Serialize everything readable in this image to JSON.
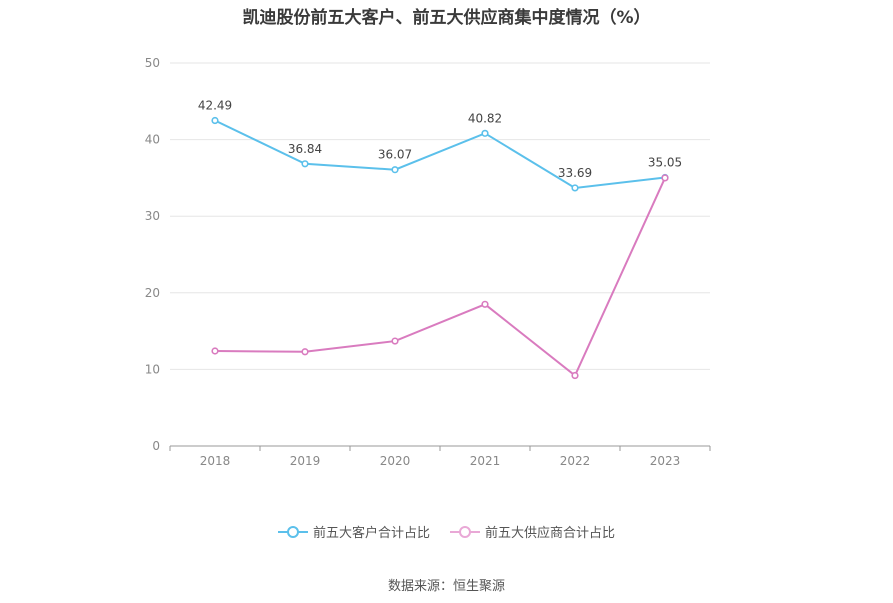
{
  "title": "凯迪股份前五大客户、前五大供应商集中度情况（%）",
  "source": "数据来源：恒生聚源",
  "colors": {
    "customers": "#5bc0eb",
    "suppliers": "#d97bbf",
    "grid": "#e6e6e6",
    "axis": "#999999",
    "tick": "#888888",
    "label": "#444444"
  },
  "chart_data": {
    "type": "line",
    "title": "凯迪股份前五大客户、前五大供应商集中度情况（%）",
    "xlabel": "",
    "ylabel": "",
    "categories": [
      "2018",
      "2019",
      "2020",
      "2021",
      "2022",
      "2023"
    ],
    "ylim": [
      0,
      50
    ],
    "yticks": [
      0,
      10,
      20,
      30,
      40,
      50
    ],
    "grid": true,
    "legend": "bottom-center",
    "series": [
      {
        "name": "前五大客户合计占比",
        "values": [
          42.49,
          36.84,
          36.07,
          40.82,
          33.69,
          35.05
        ],
        "labels": [
          "42.49",
          "36.84",
          "36.07",
          "40.82",
          "33.69",
          "35.05"
        ],
        "color": "#5bc0eb"
      },
      {
        "name": "前五大供应商合计占比",
        "values": [
          12.4,
          12.3,
          13.7,
          18.5,
          9.2,
          35.0
        ],
        "labels": [],
        "color": "#d97bbf"
      }
    ]
  }
}
